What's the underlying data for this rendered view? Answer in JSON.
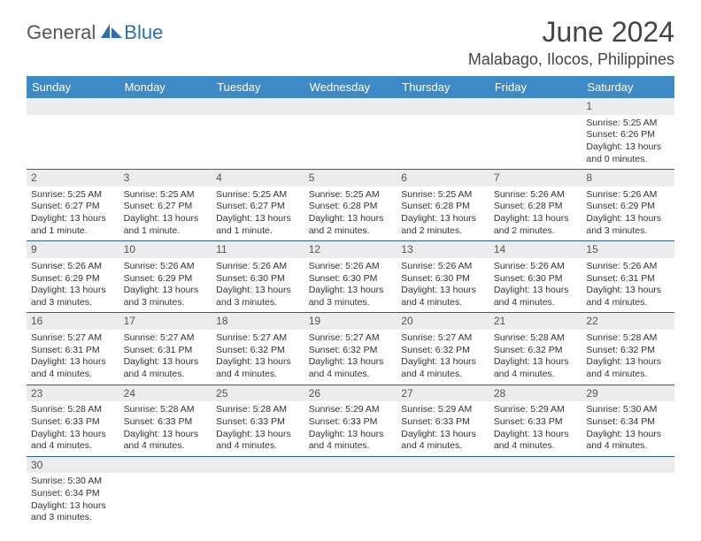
{
  "logo": {
    "part1": "General",
    "part2": "Blue"
  },
  "title": "June 2024",
  "location": "Malabago, Ilocos, Philippines",
  "colors": {
    "header_bg": "#3d8ac7",
    "header_text": "#ffffff",
    "daynum_bg": "#ececec",
    "week_border": "#2c5f8c",
    "logo_blue": "#2b6fb0",
    "text": "#333333"
  },
  "day_labels": [
    "Sunday",
    "Monday",
    "Tuesday",
    "Wednesday",
    "Thursday",
    "Friday",
    "Saturday"
  ],
  "weeks": [
    [
      {
        "n": "",
        "l1": "",
        "l2": "",
        "l3": "",
        "l4": ""
      },
      {
        "n": "",
        "l1": "",
        "l2": "",
        "l3": "",
        "l4": ""
      },
      {
        "n": "",
        "l1": "",
        "l2": "",
        "l3": "",
        "l4": ""
      },
      {
        "n": "",
        "l1": "",
        "l2": "",
        "l3": "",
        "l4": ""
      },
      {
        "n": "",
        "l1": "",
        "l2": "",
        "l3": "",
        "l4": ""
      },
      {
        "n": "",
        "l1": "",
        "l2": "",
        "l3": "",
        "l4": ""
      },
      {
        "n": "1",
        "l1": "Sunrise: 5:25 AM",
        "l2": "Sunset: 6:26 PM",
        "l3": "Daylight: 13 hours",
        "l4": "and 0 minutes."
      }
    ],
    [
      {
        "n": "2",
        "l1": "Sunrise: 5:25 AM",
        "l2": "Sunset: 6:27 PM",
        "l3": "Daylight: 13 hours",
        "l4": "and 1 minute."
      },
      {
        "n": "3",
        "l1": "Sunrise: 5:25 AM",
        "l2": "Sunset: 6:27 PM",
        "l3": "Daylight: 13 hours",
        "l4": "and 1 minute."
      },
      {
        "n": "4",
        "l1": "Sunrise: 5:25 AM",
        "l2": "Sunset: 6:27 PM",
        "l3": "Daylight: 13 hours",
        "l4": "and 1 minute."
      },
      {
        "n": "5",
        "l1": "Sunrise: 5:25 AM",
        "l2": "Sunset: 6:28 PM",
        "l3": "Daylight: 13 hours",
        "l4": "and 2 minutes."
      },
      {
        "n": "6",
        "l1": "Sunrise: 5:25 AM",
        "l2": "Sunset: 6:28 PM",
        "l3": "Daylight: 13 hours",
        "l4": "and 2 minutes."
      },
      {
        "n": "7",
        "l1": "Sunrise: 5:26 AM",
        "l2": "Sunset: 6:28 PM",
        "l3": "Daylight: 13 hours",
        "l4": "and 2 minutes."
      },
      {
        "n": "8",
        "l1": "Sunrise: 5:26 AM",
        "l2": "Sunset: 6:29 PM",
        "l3": "Daylight: 13 hours",
        "l4": "and 3 minutes."
      }
    ],
    [
      {
        "n": "9",
        "l1": "Sunrise: 5:26 AM",
        "l2": "Sunset: 6:29 PM",
        "l3": "Daylight: 13 hours",
        "l4": "and 3 minutes."
      },
      {
        "n": "10",
        "l1": "Sunrise: 5:26 AM",
        "l2": "Sunset: 6:29 PM",
        "l3": "Daylight: 13 hours",
        "l4": "and 3 minutes."
      },
      {
        "n": "11",
        "l1": "Sunrise: 5:26 AM",
        "l2": "Sunset: 6:30 PM",
        "l3": "Daylight: 13 hours",
        "l4": "and 3 minutes."
      },
      {
        "n": "12",
        "l1": "Sunrise: 5:26 AM",
        "l2": "Sunset: 6:30 PM",
        "l3": "Daylight: 13 hours",
        "l4": "and 3 minutes."
      },
      {
        "n": "13",
        "l1": "Sunrise: 5:26 AM",
        "l2": "Sunset: 6:30 PM",
        "l3": "Daylight: 13 hours",
        "l4": "and 4 minutes."
      },
      {
        "n": "14",
        "l1": "Sunrise: 5:26 AM",
        "l2": "Sunset: 6:30 PM",
        "l3": "Daylight: 13 hours",
        "l4": "and 4 minutes."
      },
      {
        "n": "15",
        "l1": "Sunrise: 5:26 AM",
        "l2": "Sunset: 6:31 PM",
        "l3": "Daylight: 13 hours",
        "l4": "and 4 minutes."
      }
    ],
    [
      {
        "n": "16",
        "l1": "Sunrise: 5:27 AM",
        "l2": "Sunset: 6:31 PM",
        "l3": "Daylight: 13 hours",
        "l4": "and 4 minutes."
      },
      {
        "n": "17",
        "l1": "Sunrise: 5:27 AM",
        "l2": "Sunset: 6:31 PM",
        "l3": "Daylight: 13 hours",
        "l4": "and 4 minutes."
      },
      {
        "n": "18",
        "l1": "Sunrise: 5:27 AM",
        "l2": "Sunset: 6:32 PM",
        "l3": "Daylight: 13 hours",
        "l4": "and 4 minutes."
      },
      {
        "n": "19",
        "l1": "Sunrise: 5:27 AM",
        "l2": "Sunset: 6:32 PM",
        "l3": "Daylight: 13 hours",
        "l4": "and 4 minutes."
      },
      {
        "n": "20",
        "l1": "Sunrise: 5:27 AM",
        "l2": "Sunset: 6:32 PM",
        "l3": "Daylight: 13 hours",
        "l4": "and 4 minutes."
      },
      {
        "n": "21",
        "l1": "Sunrise: 5:28 AM",
        "l2": "Sunset: 6:32 PM",
        "l3": "Daylight: 13 hours",
        "l4": "and 4 minutes."
      },
      {
        "n": "22",
        "l1": "Sunrise: 5:28 AM",
        "l2": "Sunset: 6:32 PM",
        "l3": "Daylight: 13 hours",
        "l4": "and 4 minutes."
      }
    ],
    [
      {
        "n": "23",
        "l1": "Sunrise: 5:28 AM",
        "l2": "Sunset: 6:33 PM",
        "l3": "Daylight: 13 hours",
        "l4": "and 4 minutes."
      },
      {
        "n": "24",
        "l1": "Sunrise: 5:28 AM",
        "l2": "Sunset: 6:33 PM",
        "l3": "Daylight: 13 hours",
        "l4": "and 4 minutes."
      },
      {
        "n": "25",
        "l1": "Sunrise: 5:28 AM",
        "l2": "Sunset: 6:33 PM",
        "l3": "Daylight: 13 hours",
        "l4": "and 4 minutes."
      },
      {
        "n": "26",
        "l1": "Sunrise: 5:29 AM",
        "l2": "Sunset: 6:33 PM",
        "l3": "Daylight: 13 hours",
        "l4": "and 4 minutes."
      },
      {
        "n": "27",
        "l1": "Sunrise: 5:29 AM",
        "l2": "Sunset: 6:33 PM",
        "l3": "Daylight: 13 hours",
        "l4": "and 4 minutes."
      },
      {
        "n": "28",
        "l1": "Sunrise: 5:29 AM",
        "l2": "Sunset: 6:33 PM",
        "l3": "Daylight: 13 hours",
        "l4": "and 4 minutes."
      },
      {
        "n": "29",
        "l1": "Sunrise: 5:30 AM",
        "l2": "Sunset: 6:34 PM",
        "l3": "Daylight: 13 hours",
        "l4": "and 4 minutes."
      }
    ],
    [
      {
        "n": "30",
        "l1": "Sunrise: 5:30 AM",
        "l2": "Sunset: 6:34 PM",
        "l3": "Daylight: 13 hours",
        "l4": "and 3 minutes."
      },
      {
        "n": "",
        "l1": "",
        "l2": "",
        "l3": "",
        "l4": ""
      },
      {
        "n": "",
        "l1": "",
        "l2": "",
        "l3": "",
        "l4": ""
      },
      {
        "n": "",
        "l1": "",
        "l2": "",
        "l3": "",
        "l4": ""
      },
      {
        "n": "",
        "l1": "",
        "l2": "",
        "l3": "",
        "l4": ""
      },
      {
        "n": "",
        "l1": "",
        "l2": "",
        "l3": "",
        "l4": ""
      },
      {
        "n": "",
        "l1": "",
        "l2": "",
        "l3": "",
        "l4": ""
      }
    ]
  ]
}
